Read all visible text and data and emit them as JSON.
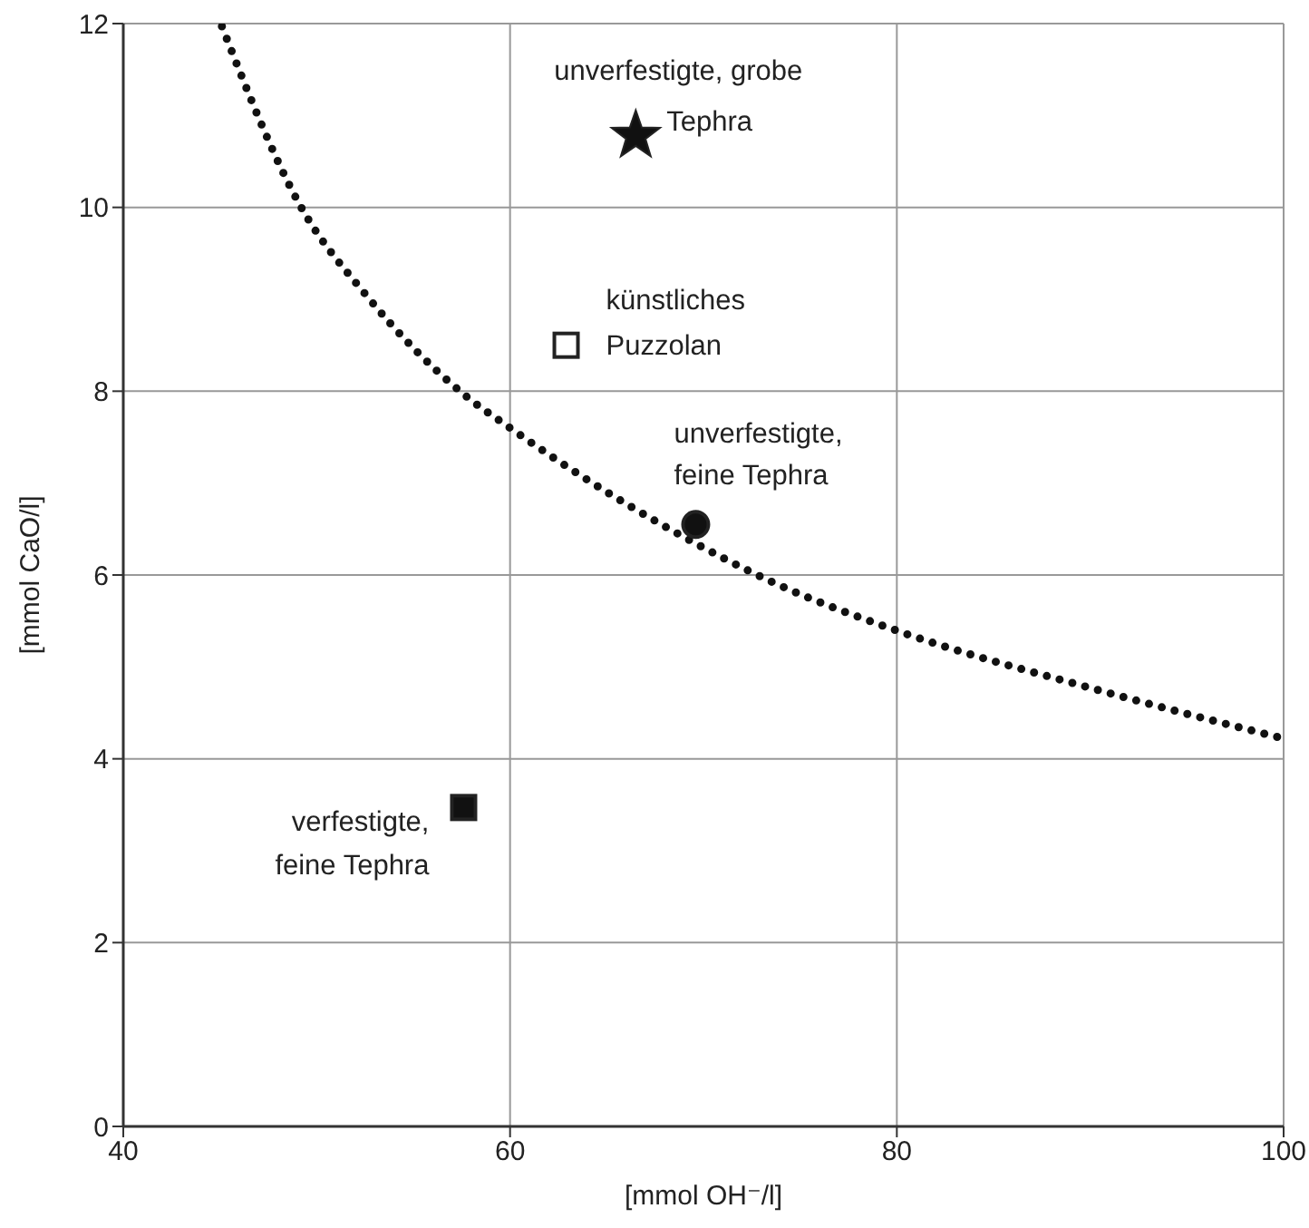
{
  "chart_data": {
    "type": "scatter",
    "xlabel": "[mmol OH⁻/l]",
    "ylabel": "[mmol CaO/l]",
    "xlim": [
      40,
      100
    ],
    "ylim": [
      0,
      12
    ],
    "xticks": [
      40,
      60,
      80,
      100
    ],
    "yticks": [
      0,
      2,
      4,
      6,
      8,
      10,
      12
    ],
    "grid": true,
    "legend": false,
    "series": [
      {
        "type": "line",
        "line_style": "dotted",
        "marker": "none",
        "color": "#111111",
        "x": [
          45.1,
          49.2,
          52.5,
          57.7,
          60,
          68.5,
          73.6,
          80.2,
          90.2,
          100
        ],
        "values": [
          11.97,
          10.0,
          9.06,
          7.95,
          7.6,
          6.47,
          5.92,
          5.38,
          4.76,
          4.22
        ]
      },
      {
        "name": "unverfestigte, grobe Tephra",
        "marker": "star",
        "color": "#111111",
        "x": [
          66.5
        ],
        "values": [
          10.78
        ]
      },
      {
        "name": "künstliches Puzzolan",
        "marker": "square",
        "color": "#ffffff",
        "x": [
          62.9
        ],
        "values": [
          8.5
        ]
      },
      {
        "name": "unverfestigte, feine Tephra",
        "marker": "circle",
        "color": "#111111",
        "x": [
          69.6
        ],
        "values": [
          6.55
        ]
      },
      {
        "name": "verfestigte, feine Tephra",
        "marker": "square",
        "color": "#111111",
        "x": [
          57.6
        ],
        "values": [
          3.47
        ]
      }
    ]
  }
}
